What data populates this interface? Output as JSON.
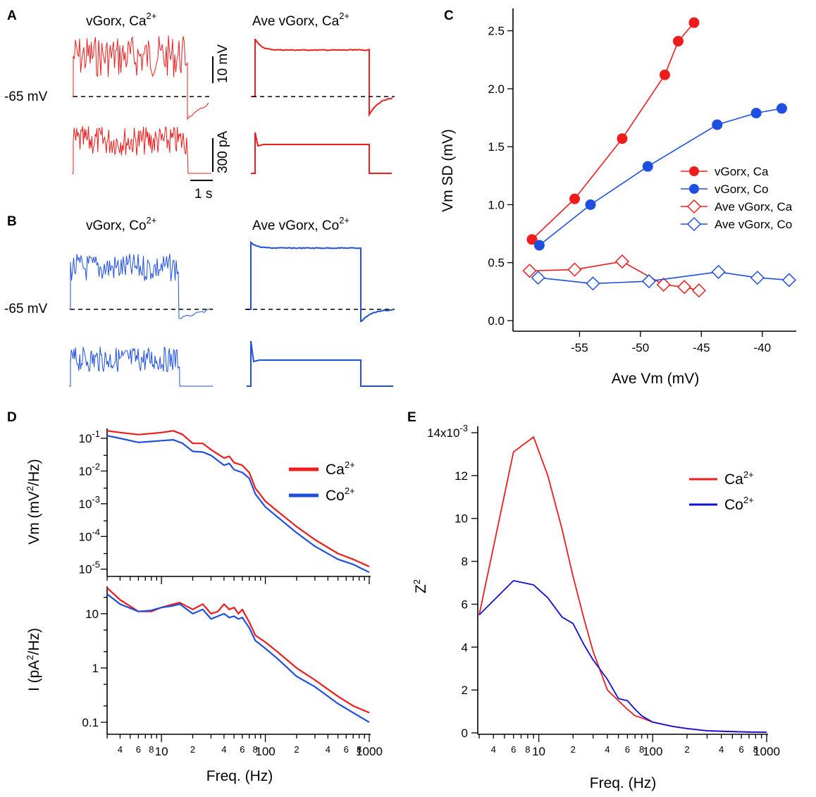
{
  "colors": {
    "ca": "#ee1c1c",
    "co": "#1f4fe0",
    "co_dark": "#1010d8",
    "black": "#000000"
  },
  "panels": {
    "A": "A",
    "B": "B",
    "C": "C",
    "D": "D",
    "E": "E"
  },
  "traces": {
    "a_left_title": "vGorx, Ca",
    "a_right_title": "Ave vGorx, Ca",
    "a_sup": "2+",
    "b_left_title": "vGorx, Co",
    "b_right_title": "Ave vGorx, Co",
    "b_sup": "2+",
    "rest_label": "-65 mV",
    "scale_vm": "10 mV",
    "scale_i": "300 pA",
    "scale_t": "1 s"
  },
  "chart_data": [
    {
      "id": "C",
      "type": "scatter",
      "xlabel": "Ave Vm (mV)",
      "ylabel": "Vm SD (mV)",
      "xlim": [
        -60,
        -37.5
      ],
      "ylim": [
        0,
        2.65
      ],
      "xticks": [
        -55,
        -50,
        -45,
        -40
      ],
      "yticks": [
        0.0,
        0.5,
        1.0,
        1.5,
        2.0,
        2.5
      ],
      "xtick_labels": [
        "-55",
        "-50",
        "-45",
        "-40"
      ],
      "ytick_labels": [
        "0.0",
        "0.5",
        "1.0",
        "1.5",
        "2.0",
        "2.5"
      ],
      "series": [
        {
          "name": "vGorx, Ca",
          "marker": "filled-circle",
          "color": "#ee1c1c",
          "x": [
            -58.9,
            -55.4,
            -51.5,
            -48.0,
            -46.9,
            -45.6
          ],
          "y": [
            0.7,
            1.05,
            1.57,
            2.12,
            2.41,
            2.57
          ]
        },
        {
          "name": "vGorx, Co",
          "marker": "filled-circle",
          "color": "#1f4fe0",
          "x": [
            -58.3,
            -54.1,
            -49.4,
            -43.7,
            -40.5,
            -38.4
          ],
          "y": [
            0.65,
            1.0,
            1.33,
            1.69,
            1.79,
            1.83
          ]
        },
        {
          "name": "Ave vGorx, Ca",
          "marker": "open-diamond",
          "color": "#ee1c1c",
          "x": [
            -59.1,
            -55.4,
            -51.5,
            -48.1,
            -46.4,
            -45.2
          ],
          "y": [
            0.43,
            0.44,
            0.51,
            0.31,
            0.29,
            0.26
          ]
        },
        {
          "name": "Ave vGorx, Co",
          "marker": "open-diamond",
          "color": "#1f4fe0",
          "x": [
            -58.4,
            -53.9,
            -49.3,
            -43.6,
            -40.4,
            -37.8
          ],
          "y": [
            0.37,
            0.32,
            0.34,
            0.42,
            0.37,
            0.35
          ]
        }
      ]
    },
    {
      "id": "D-top",
      "type": "line",
      "xlabel": "",
      "ylabel": "Vm (mV²/Hz)",
      "ylabel_main": "Vm (mV",
      "ylabel_sup": "2",
      "ylabel_tail": "/Hz)",
      "xscale": "log",
      "yscale": "log",
      "xlim": [
        3,
        1000
      ],
      "ylim": [
        6e-06,
        0.2
      ],
      "yticks": [
        1e-05,
        0.0001,
        0.001,
        0.01,
        0.1
      ],
      "ytick_base": [
        "10",
        "10",
        "10",
        "10",
        "10"
      ],
      "ytick_exp": [
        "-5",
        "-4",
        "-3",
        "-2",
        "-1"
      ],
      "legend": [
        "Ca",
        "Co"
      ],
      "legend_sup": "2+",
      "series": [
        {
          "name": "Ca",
          "color": "#ee1c1c",
          "x": [
            3,
            4,
            6,
            8,
            10,
            13,
            16,
            20,
            25,
            30,
            40,
            45,
            50,
            60,
            70,
            80,
            100,
            130,
            200,
            300,
            500,
            700,
            1000
          ],
          "y": [
            0.17,
            0.15,
            0.13,
            0.14,
            0.15,
            0.17,
            0.13,
            0.07,
            0.07,
            0.045,
            0.025,
            0.028,
            0.018,
            0.015,
            0.009,
            0.003,
            0.0012,
            0.0006,
            0.0002,
            8e-05,
            3e-05,
            2e-05,
            1.2e-05
          ]
        },
        {
          "name": "Co",
          "color": "#1f4fe0",
          "x": [
            3,
            4,
            6,
            8,
            10,
            13,
            16,
            20,
            25,
            30,
            40,
            45,
            50,
            60,
            70,
            80,
            100,
            130,
            200,
            300,
            500,
            700,
            1000
          ],
          "y": [
            0.12,
            0.1,
            0.075,
            0.08,
            0.085,
            0.09,
            0.07,
            0.04,
            0.038,
            0.03,
            0.015,
            0.017,
            0.011,
            0.009,
            0.006,
            0.002,
            0.0008,
            0.0004,
            0.00013,
            5e-05,
            2e-05,
            1.4e-05,
            8e-06
          ]
        }
      ]
    },
    {
      "id": "D-bottom",
      "type": "line",
      "xlabel": "Freq. (Hz)",
      "ylabel": "I (pA²/Hz)",
      "ylabel_main": "I (pA",
      "ylabel_sup": "2",
      "ylabel_tail": "/Hz)",
      "xscale": "log",
      "yscale": "log",
      "xlim": [
        3,
        1000
      ],
      "ylim": [
        0.06,
        32
      ],
      "yticks": [
        0.1,
        1,
        10
      ],
      "ytick_labels": [
        "0.1",
        "1",
        "10"
      ],
      "xtick_major": [
        10,
        100,
        1000
      ],
      "xtick_major_labels": [
        "10",
        "100",
        "1000"
      ],
      "xtick_minor_labels": [
        "4",
        "6",
        "8",
        "2",
        "4",
        "6",
        "8",
        "2",
        "4",
        "6",
        "8"
      ],
      "series": [
        {
          "name": "Ca",
          "color": "#ee1c1c",
          "x": [
            3,
            4,
            6,
            8,
            10,
            13,
            15,
            20,
            25,
            30,
            35,
            40,
            45,
            50,
            55,
            60,
            70,
            80,
            100,
            130,
            200,
            300,
            500,
            700,
            1000
          ],
          "y": [
            30,
            18,
            11,
            11,
            13,
            15,
            16,
            12,
            15,
            10,
            11,
            15,
            12,
            13,
            10,
            12,
            7,
            4,
            3,
            2,
            1.0,
            0.6,
            0.3,
            0.2,
            0.15
          ]
        },
        {
          "name": "Co",
          "color": "#1f4fe0",
          "x": [
            3,
            4,
            6,
            8,
            10,
            13,
            15,
            20,
            25,
            30,
            35,
            40,
            45,
            50,
            55,
            60,
            70,
            80,
            100,
            130,
            200,
            300,
            500,
            700,
            1000
          ],
          "y": [
            23,
            15,
            11,
            11.5,
            13,
            14,
            15,
            10,
            12,
            8,
            9,
            10,
            8.5,
            9,
            8,
            8.5,
            5.5,
            3.2,
            2.3,
            1.5,
            0.7,
            0.45,
            0.22,
            0.15,
            0.1
          ]
        }
      ]
    },
    {
      "id": "E",
      "type": "line",
      "xlabel": "Freq. (Hz)",
      "ylabel": "Z²",
      "ylabel_main": "Z",
      "ylabel_sup": "2",
      "xscale": "log",
      "xlim": [
        3,
        1000
      ],
      "ylim": [
        0,
        0.0145
      ],
      "yticks": [
        0,
        0.002,
        0.004,
        0.006,
        0.008,
        0.01,
        0.012,
        0.014
      ],
      "ytick_labels": [
        "0",
        "2",
        "4",
        "6",
        "8",
        "10",
        "12",
        "14x10"
      ],
      "ytick_top_sup": "-3",
      "xtick_major": [
        10,
        100,
        1000
      ],
      "xtick_major_labels": [
        "10",
        "100",
        "1000"
      ],
      "xtick_minor_labels": [
        "4",
        "6",
        "8",
        "2",
        "4",
        "6",
        "8",
        "2",
        "4",
        "6",
        "8"
      ],
      "legend": [
        "Ca",
        "Co"
      ],
      "legend_sup": "2+",
      "series": [
        {
          "name": "Ca",
          "color": "#ee1c1c",
          "x": [
            3,
            6,
            9,
            12,
            16,
            20,
            25,
            30,
            40,
            50,
            60,
            70,
            80,
            100,
            150,
            200,
            300,
            500,
            700,
            1000
          ],
          "y": [
            0.0055,
            0.0131,
            0.0138,
            0.012,
            0.0095,
            0.0073,
            0.0053,
            0.0038,
            0.002,
            0.0015,
            0.0011,
            0.0008,
            0.0007,
            0.0005,
            0.0003,
            0.0002,
            0.0001,
            6e-05,
            4e-05,
            3e-05
          ]
        },
        {
          "name": "Co",
          "color": "#1010d8",
          "x": [
            3,
            6,
            9,
            12,
            16,
            20,
            25,
            30,
            40,
            50,
            60,
            70,
            80,
            100,
            150,
            200,
            300,
            500,
            700,
            1000
          ],
          "y": [
            0.0055,
            0.0071,
            0.0069,
            0.0063,
            0.0054,
            0.0051,
            0.0041,
            0.0034,
            0.0025,
            0.0016,
            0.0015,
            0.0011,
            0.0008,
            0.0005,
            0.0003,
            0.0002,
            0.0001,
            6e-05,
            4e-05,
            3e-05
          ]
        }
      ]
    }
  ]
}
